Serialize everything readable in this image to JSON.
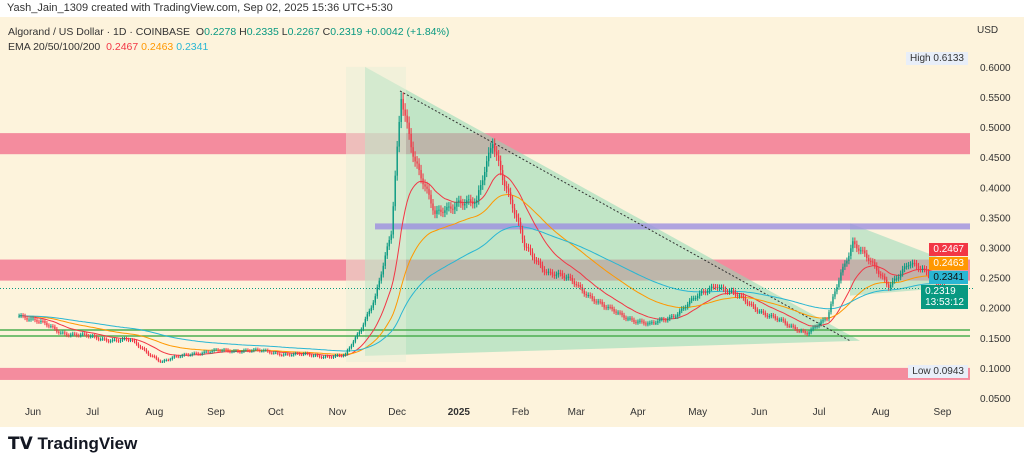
{
  "credit": "Yash_Jain_1309 created with TradingView.com, Sep 02, 2025 15:36 UTC+5:30",
  "legend": {
    "symbol": "Algorand / US Dollar · 1D · COINBASE",
    "o_label": "O",
    "o": "0.2278",
    "h_label": "H",
    "h": "0.2335",
    "l_label": "L",
    "l": "0.2267",
    "c_label": "C",
    "c": "0.2319",
    "change": "+0.0042 (+1.84%)",
    "ema_label": "EMA 20/50/100/200",
    "ema20": "0.2467",
    "ema50": "0.2463",
    "ema100": "0.2341"
  },
  "currency": "USD",
  "high_label": "High",
  "high": "0.6133",
  "low_label": "Low",
  "low": "0.0943",
  "last_price": "0.2319",
  "countdown": "13:53:12",
  "brand": "TradingView",
  "colors": {
    "up": "#089981",
    "down": "#f23645",
    "ema20": "#f23645",
    "ema50": "#ff9800",
    "ema100": "#29b6d3",
    "zone": "#f06a8a",
    "band": "#9c8fe0",
    "support": "#4caf50"
  },
  "chart_data": {
    "type": "candlestick",
    "scale": "linear",
    "grid": false,
    "yticks": [
      "0.6000",
      "0.5500",
      "0.5000",
      "0.4500",
      "0.4000",
      "0.3500",
      "0.3000",
      "0.2500",
      "0.2000",
      "0.1500",
      "0.1000",
      "0.0500"
    ],
    "xticks": [
      "Jun",
      "Jul",
      "Aug",
      "Sep",
      "Oct",
      "Nov",
      "Dec",
      "2025",
      "Feb",
      "Mar",
      "Apr",
      "May",
      "Jun",
      "Jul",
      "Aug",
      "Sep"
    ],
    "ylim": [
      0.05,
      0.6133
    ],
    "closes": [
      [
        "2024-05-25",
        0.19
      ],
      [
        "2024-06-15",
        0.16
      ],
      [
        "2024-07-01",
        0.15
      ],
      [
        "2024-07-20",
        0.145
      ],
      [
        "2024-08-05",
        0.11
      ],
      [
        "2024-08-20",
        0.125
      ],
      [
        "2024-09-15",
        0.13
      ],
      [
        "2024-10-01",
        0.125
      ],
      [
        "2024-10-20",
        0.12
      ],
      [
        "2024-11-05",
        0.12
      ],
      [
        "2024-11-12",
        0.16
      ],
      [
        "2024-11-20",
        0.22
      ],
      [
        "2024-11-28",
        0.32
      ],
      [
        "2024-12-03",
        0.55
      ],
      [
        "2024-12-10",
        0.45
      ],
      [
        "2024-12-20",
        0.35
      ],
      [
        "2025-01-01",
        0.38
      ],
      [
        "2025-01-10",
        0.37
      ],
      [
        "2025-01-18",
        0.48
      ],
      [
        "2025-01-25",
        0.4
      ],
      [
        "2025-02-03",
        0.3
      ],
      [
        "2025-02-15",
        0.26
      ],
      [
        "2025-03-01",
        0.24
      ],
      [
        "2025-03-15",
        0.2
      ],
      [
        "2025-04-07",
        0.17
      ],
      [
        "2025-04-20",
        0.19
      ],
      [
        "2025-05-10",
        0.24
      ],
      [
        "2025-05-25",
        0.21
      ],
      [
        "2025-06-15",
        0.17
      ],
      [
        "2025-06-25",
        0.16
      ],
      [
        "2025-07-05",
        0.18
      ],
      [
        "2025-07-12",
        0.26
      ],
      [
        "2025-07-18",
        0.31
      ],
      [
        "2025-07-25",
        0.28
      ],
      [
        "2025-08-05",
        0.24
      ],
      [
        "2025-08-15",
        0.27
      ],
      [
        "2025-08-25",
        0.26
      ],
      [
        "2025-09-02",
        0.2319
      ]
    ],
    "zones": [
      [
        0.455,
        0.49
      ],
      [
        0.245,
        0.28
      ],
      [
        0.08,
        0.1
      ]
    ],
    "resistance_band": [
      0.33,
      0.34
    ],
    "support_lines": [
      0.153,
      0.163
    ]
  }
}
